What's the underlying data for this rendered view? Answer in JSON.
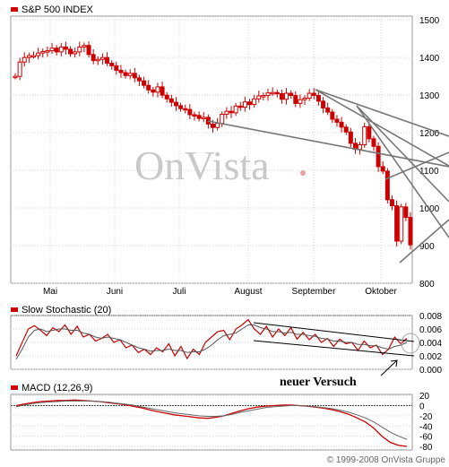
{
  "chart_data": [
    {
      "type": "candlestick",
      "title": "S&P 500 INDEX",
      "yticks": [
        800,
        900,
        1000,
        1100,
        1200,
        1300,
        1400,
        1500
      ],
      "ylim": [
        800,
        1510
      ],
      "xticks": [
        "Mai",
        "Juni",
        "Juli",
        "August",
        "September",
        "Oktober"
      ],
      "close_series": [
        1350,
        1388,
        1400,
        1405,
        1405,
        1412,
        1416,
        1418,
        1425,
        1415,
        1428,
        1422,
        1410,
        1415,
        1428,
        1432,
        1408,
        1392,
        1395,
        1400,
        1385,
        1378,
        1366,
        1360,
        1352,
        1358,
        1346,
        1338,
        1326,
        1314,
        1308,
        1322,
        1300,
        1290,
        1281,
        1272,
        1264,
        1262,
        1248,
        1246,
        1238,
        1241,
        1223,
        1214,
        1225,
        1249,
        1257,
        1253,
        1271,
        1268,
        1282,
        1275,
        1290,
        1298,
        1299,
        1306,
        1307,
        1304,
        1289,
        1305,
        1299,
        1278,
        1288,
        1292,
        1305,
        1299,
        1284,
        1266,
        1255,
        1236,
        1228,
        1215,
        1202,
        1172,
        1156,
        1168,
        1216,
        1184,
        1164,
        1110,
        1098,
        1022,
        1006,
        912,
        1003,
        975,
        902
      ],
      "annotations": [
        "neuer Versuch"
      ],
      "watermark": "OnVista",
      "copyright": "© 1999-2008 OnVista Gruppe"
    },
    {
      "type": "line",
      "title": "Slow Stochastic (20)",
      "yticks": [
        0.0,
        0.002,
        0.004,
        0.006,
        0.008
      ],
      "ytick_labels": [
        "0.000",
        "0.002",
        "0.004",
        "0.006",
        "0.008"
      ],
      "ylim": [
        0,
        0.008
      ],
      "series": [
        {
          "values": [
            0.002,
            0.004,
            0.006,
            0.0065,
            0.0058,
            0.005,
            0.0062,
            0.0056,
            0.0066,
            0.0052,
            0.0064,
            0.0048,
            0.0052,
            0.0042,
            0.0046,
            0.0052,
            0.004,
            0.0044,
            0.0032,
            0.0036,
            0.0025,
            0.003,
            0.0022,
            0.0032,
            0.0026,
            0.0038,
            0.002,
            0.0034,
            0.0016,
            0.003,
            0.0022,
            0.004,
            0.0048,
            0.0056,
            0.0058,
            0.0044,
            0.006,
            0.0066,
            0.0074,
            0.006,
            0.0052,
            0.0064,
            0.0048,
            0.006,
            0.005,
            0.0062,
            0.0045,
            0.0055,
            0.0044,
            0.0052,
            0.004,
            0.0046,
            0.0034,
            0.0045,
            0.0038,
            0.004,
            0.0028,
            0.0042,
            0.0032,
            0.0036,
            0.0022,
            0.003,
            0.0048,
            0.0038,
            0.0046
          ]
        },
        {
          "values": [
            0.0015,
            0.003,
            0.0048,
            0.0058,
            0.006,
            0.0056,
            0.0058,
            0.006,
            0.006,
            0.0058,
            0.0058,
            0.0054,
            0.0052,
            0.0048,
            0.0046,
            0.0048,
            0.0046,
            0.0044,
            0.004,
            0.0036,
            0.0032,
            0.003,
            0.0027,
            0.0028,
            0.0028,
            0.003,
            0.0028,
            0.0028,
            0.0025,
            0.0026,
            0.0026,
            0.003,
            0.0036,
            0.0044,
            0.005,
            0.0052,
            0.0054,
            0.006,
            0.0066,
            0.0066,
            0.0062,
            0.006,
            0.0056,
            0.0056,
            0.0054,
            0.0055,
            0.0052,
            0.0052,
            0.005,
            0.0049,
            0.0046,
            0.0045,
            0.0042,
            0.0042,
            0.004,
            0.004,
            0.0037,
            0.0037,
            0.0035,
            0.0035,
            0.0032,
            0.003,
            0.0034,
            0.0036,
            0.004
          ]
        }
      ]
    },
    {
      "type": "line",
      "title": "MACD (12,26,9)",
      "yticks": [
        20,
        0,
        -20,
        -40,
        -60,
        -80
      ],
      "ylim": [
        -87,
        22
      ],
      "series": [
        {
          "values": [
            0,
            3,
            6,
            8,
            9,
            10,
            10,
            11,
            10,
            9,
            8,
            6,
            4,
            2,
            -1,
            -4,
            -8,
            -12,
            -15,
            -18,
            -20,
            -22,
            -24,
            -25,
            -23,
            -20,
            -15,
            -10,
            -6,
            -3,
            -1,
            0,
            1,
            1,
            0,
            -1,
            -3,
            -5,
            -8,
            -12,
            -17,
            -24,
            -32,
            -44,
            -60,
            -72,
            -78,
            -80
          ]
        },
        {
          "values": [
            -2,
            1,
            4,
            6,
            7,
            8,
            9,
            9,
            9,
            9,
            8,
            7,
            5,
            3,
            1,
            -2,
            -5,
            -8,
            -11,
            -14,
            -16,
            -18,
            -20,
            -21,
            -21,
            -20,
            -17,
            -13,
            -10,
            -7,
            -4,
            -2,
            -1,
            0,
            0,
            -1,
            -2,
            -4,
            -6,
            -9,
            -13,
            -18,
            -24,
            -32,
            -42,
            -52,
            -60,
            -66
          ]
        }
      ]
    }
  ]
}
